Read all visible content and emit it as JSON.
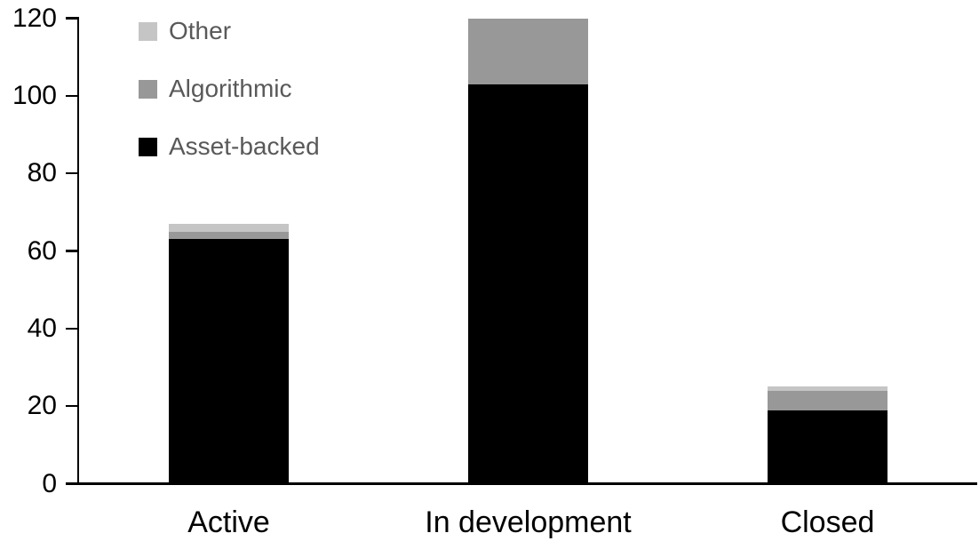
{
  "chart_data": {
    "type": "bar",
    "stacked": true,
    "title": "",
    "xlabel": "",
    "ylabel": "",
    "categories": [
      "Active",
      "In development",
      "Closed"
    ],
    "series": [
      {
        "name": "Asset-backed",
        "color": "#000000",
        "values": [
          63,
          103,
          19
        ]
      },
      {
        "name": "Algorithmic",
        "color": "#989898",
        "values": [
          2,
          17,
          5
        ]
      },
      {
        "name": "Other",
        "color": "#c5c5c5",
        "values": [
          2,
          0,
          1
        ]
      }
    ],
    "totals": [
      67,
      120,
      25
    ],
    "yticks": [
      0,
      20,
      40,
      60,
      80,
      100,
      120
    ],
    "ylim": [
      0,
      120
    ],
    "grid": false,
    "legend_position": "top-left",
    "legend_order": [
      "Other",
      "Algorithmic",
      "Asset-backed"
    ],
    "axis_color": "#000000",
    "text_color": "#000000",
    "legend_text_color": "#595959",
    "background": "#ffffff"
  }
}
